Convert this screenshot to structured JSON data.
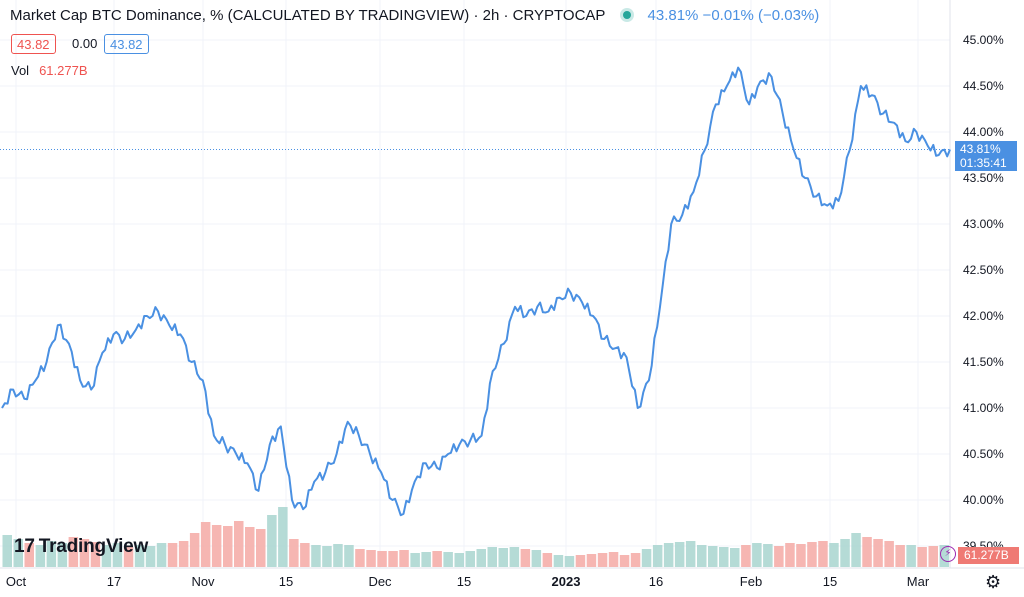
{
  "header": {
    "title": "Market Cap BTC Dominance, % (CALCULATED BY TRADINGVIEW) · 2h · CRYPTOCAP",
    "quote": "43.81%  −0.01% (−0.03%)"
  },
  "ohlc": {
    "low": "43.82",
    "change": "0.00",
    "high": "43.82"
  },
  "volume": {
    "label": "Vol",
    "value": "61.277B"
  },
  "price_badge": {
    "price": "43.81%",
    "countdown": "01:35:41"
  },
  "vol_badge": "61.277B",
  "logo": {
    "text": "TradingView",
    "mark": "17"
  },
  "colors": {
    "line": "#4a90e2",
    "vol_up": "#a8d5cf",
    "vol_down": "#f4a9a5",
    "up": "#26a69a",
    "down": "#ef5350"
  },
  "chart_data": {
    "type": "line",
    "title": "Market Cap BTC Dominance, % (CALCULATED BY TRADINGVIEW)",
    "interval": "2h",
    "ylim": [
      39.45,
      45.15
    ],
    "y_ticks": [
      "45.00%",
      "44.50%",
      "44.00%",
      "43.50%",
      "43.00%",
      "42.50%",
      "42.00%",
      "41.50%",
      "41.00%",
      "40.50%",
      "40.00%",
      "39.50%"
    ],
    "x_ticks": [
      "Oct",
      "17",
      "Nov",
      "15",
      "Dec",
      "15",
      "2023",
      "16",
      "Feb",
      "15",
      "Mar"
    ],
    "last_value": 43.81,
    "series": [
      {
        "values": [
          41.0,
          41.2,
          41.1,
          41.3,
          41.5,
          41.9,
          41.7,
          41.3,
          41.2,
          41.6,
          41.8,
          41.75,
          41.85,
          42.0,
          42.05,
          41.9,
          41.8,
          41.5,
          41.3,
          40.7,
          40.6,
          40.5,
          40.4,
          40.1,
          40.6,
          40.8,
          40.0,
          39.9,
          40.2,
          40.3,
          40.5,
          40.85,
          40.7,
          40.5,
          40.3,
          40.0,
          39.85,
          40.2,
          40.4,
          40.35,
          40.5,
          40.6,
          40.65,
          40.7,
          41.4,
          41.7,
          42.1,
          42.0,
          42.1,
          42.05,
          42.2,
          42.25,
          42.15,
          42.0,
          41.75,
          41.65,
          41.55,
          41.0,
          41.3,
          42.1,
          43.0,
          43.1,
          43.35,
          43.8,
          44.3,
          44.5,
          44.7,
          44.3,
          44.55,
          44.6,
          44.2,
          43.8,
          43.5,
          43.3,
          43.2,
          43.25,
          43.8,
          44.5,
          44.4,
          44.2,
          44.1,
          43.9,
          44.0,
          43.85,
          43.75,
          43.81
        ]
      },
      {
        "name": "Vol",
        "values": [
          32,
          28,
          24,
          22,
          26,
          24,
          30,
          28,
          25,
          22,
          24,
          20,
          22,
          21,
          24,
          24,
          26,
          34,
          45,
          42,
          41,
          46,
          40,
          38,
          52,
          60,
          28,
          24,
          22,
          21,
          23,
          22,
          18,
          17,
          16,
          16,
          17,
          14,
          15,
          16,
          15,
          14,
          16,
          18,
          20,
          19,
          20,
          18,
          17,
          14,
          12,
          11,
          12,
          13,
          14,
          15,
          12,
          14,
          18,
          22,
          24,
          25,
          26,
          22,
          21,
          20,
          19,
          22,
          24,
          23,
          21,
          24,
          23,
          25,
          26,
          24,
          28,
          34,
          30,
          28,
          26,
          22,
          22,
          20,
          21,
          22
        ]
      }
    ]
  }
}
